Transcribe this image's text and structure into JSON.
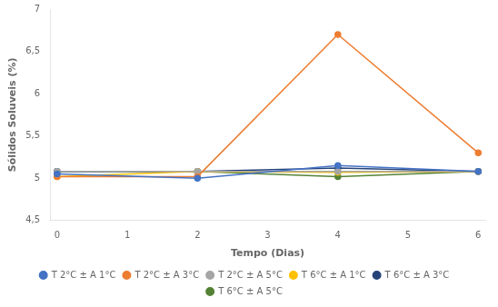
{
  "chart_data": {
    "type": "line",
    "x": [
      0,
      2,
      4,
      6
    ],
    "series": [
      {
        "name": "T 2°C ± A 1°C",
        "color": "#4472C4",
        "marker": "circle",
        "values": [
          5.05,
          5.0,
          5.15,
          5.08
        ]
      },
      {
        "name": "T 2°C ± A 3°C",
        "color": "#ED7D31",
        "marker": "circle",
        "values": [
          5.02,
          5.02,
          6.7,
          5.3
        ]
      },
      {
        "name": "T 2°C ± A 5°C",
        "color": "#A5A5A5",
        "marker": "circle",
        "values": [
          5.08,
          5.08,
          5.08,
          5.08
        ]
      },
      {
        "name": "T 6°C ± A 1°C",
        "color": "#FFC000",
        "marker": "circle",
        "values": [
          5.02,
          5.08,
          5.07,
          5.08
        ]
      },
      {
        "name": "T 6°C ± A 3°C",
        "color": "#264478",
        "marker": "circle",
        "values": [
          5.08,
          5.08,
          5.12,
          5.08
        ]
      },
      {
        "name": "T 6°C ± A 5°C",
        "color": "#548235",
        "marker": "circle",
        "values": [
          5.08,
          5.08,
          5.02,
          5.08
        ]
      }
    ],
    "xlabel": "Tempo (Dias)",
    "ylabel": "Sólidos Soluveis (%)",
    "xlim": [
      -0.1,
      6.1
    ],
    "xticks": [
      0,
      1,
      2,
      3,
      4,
      5,
      6
    ],
    "ylim": [
      4.5,
      7.0
    ],
    "yticks": [
      {
        "value": 4.5,
        "label": "4,5"
      },
      5,
      {
        "value": 5.5,
        "label": "5,5"
      },
      6,
      {
        "value": 6.5,
        "label": "6,5"
      },
      7
    ],
    "grid": false,
    "legend": "bottom"
  }
}
